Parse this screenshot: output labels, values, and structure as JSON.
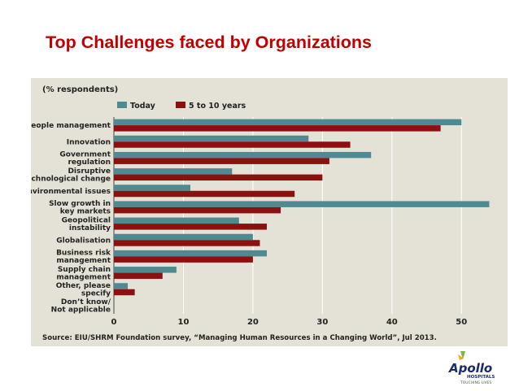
{
  "slide": {
    "title": "Top Challenges faced by Organizations"
  },
  "chart_data": {
    "type": "bar",
    "orientation": "horizontal",
    "unit_label": "(% respondents)",
    "categories": [
      "People management",
      "Innovation",
      "Government\nregulation",
      "Disruptive\ntechnological change",
      "Environmental issues",
      "Slow growth in\nkey markets",
      "Geopolitical\ninstability",
      "Globalisation",
      "Business risk\nmanagement",
      "Supply chain\nmanagement",
      "Other, please\nspecify",
      "Don’t know/\nNot applicable"
    ],
    "series": [
      {
        "name": "Today",
        "color": "#4f8a93",
        "values": [
          50,
          28,
          37,
          17,
          11,
          54,
          18,
          20,
          22,
          9,
          2,
          0
        ]
      },
      {
        "name": "5 to 10 years",
        "color": "#8b1010",
        "values": [
          47,
          34,
          31,
          30,
          26,
          24,
          22,
          21,
          20,
          7,
          3,
          0
        ]
      }
    ],
    "xlim": [
      0,
      55
    ],
    "xticks": [
      0,
      10,
      20,
      30,
      40,
      50
    ],
    "grid": true,
    "legend_position": "top",
    "source": "Source: EIU/SHRM Foundation survey, “Managing Human Resources in a Changing World”, Jul 2013.",
    "background_color": "#e4e2d6"
  },
  "logo": {
    "brand": "Apollo",
    "sub": "HOSPITALS",
    "tagline": "TOUCHING LIVES"
  }
}
